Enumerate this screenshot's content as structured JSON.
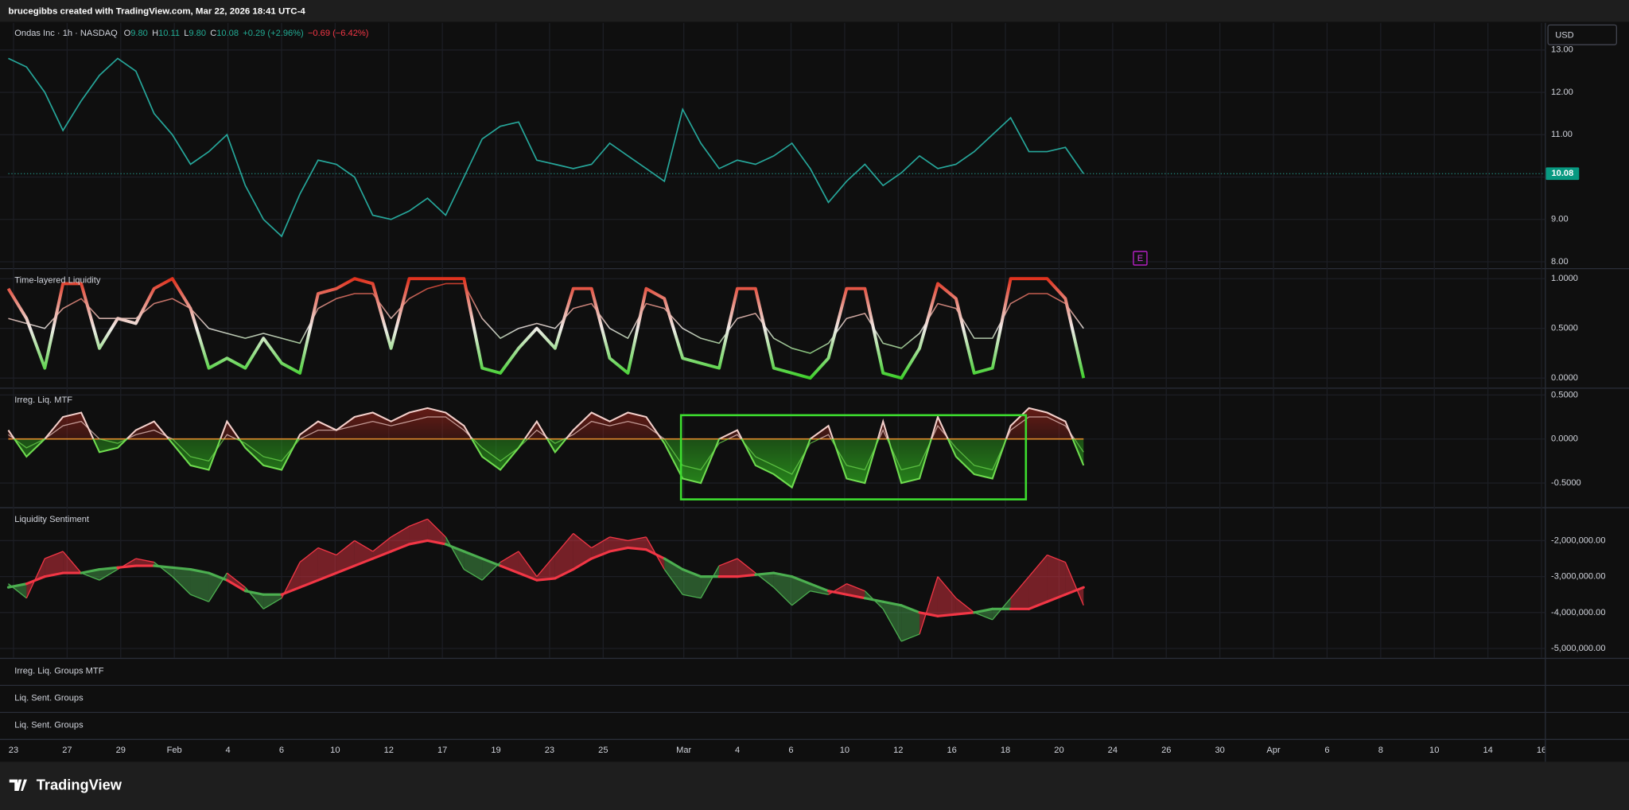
{
  "header": {
    "credit": "brucegibbs created with TradingView.com, Mar 22, 2026 18:41 UTC-4"
  },
  "legend": {
    "symbol": "Ondas Inc · 1h · NASDAQ",
    "ohlc": [
      {
        "key": "O",
        "value": "9.80"
      },
      {
        "key": "H",
        "value": "10.11"
      },
      {
        "key": "L",
        "value": "9.80"
      },
      {
        "key": "C",
        "value": "10.08"
      }
    ],
    "change": "+0.29 (+2.96%)",
    "change2": "−0.69 (−6.42%)"
  },
  "currency": "USD",
  "marker": "E",
  "chart_data": [
    {
      "type": "line",
      "color": "#26a69a",
      "grid": true,
      "values": [
        12.8,
        12.6,
        12.0,
        11.1,
        11.8,
        12.4,
        12.8,
        12.5,
        11.5,
        11.0,
        10.3,
        10.6,
        11.0,
        9.8,
        9.0,
        8.6,
        9.6,
        10.4,
        10.3,
        10.0,
        9.1,
        9.0,
        9.2,
        9.5,
        9.1,
        10.0,
        10.9,
        11.2,
        11.3,
        10.4,
        10.3,
        10.2,
        10.3,
        10.8,
        10.5,
        10.2,
        9.9,
        11.6,
        10.8,
        10.2,
        10.4,
        10.3,
        10.5,
        10.8,
        10.2,
        9.4,
        9.9,
        10.3,
        9.8,
        10.1,
        10.5,
        10.2,
        10.3,
        10.6,
        11.0,
        11.4,
        10.6,
        10.6,
        10.7,
        10.08
      ],
      "ylim": [
        7.85,
        13.64
      ],
      "yticks": [
        {
          "value": 8,
          "label": "8.00"
        },
        {
          "value": 9,
          "label": "9.00"
        },
        {
          "value": 10,
          "label": "10.00"
        },
        {
          "value": 11,
          "label": "11.00"
        },
        {
          "value": 12,
          "label": "12.00"
        },
        {
          "value": 13,
          "label": "13.00"
        }
      ]
    },
    {
      "type": "line",
      "title": "Time-layered Liquidity",
      "grid": true,
      "colors": {
        "high": "#e0321e",
        "mid": "#f0ece8",
        "low": "#3ecf2b"
      },
      "series": [
        {
          "values": [
            0.9,
            0.6,
            0.1,
            0.95,
            0.95,
            0.3,
            0.6,
            0.55,
            0.9,
            1.0,
            0.7,
            0.1,
            0.2,
            0.1,
            0.4,
            0.15,
            0.05,
            0.85,
            0.9,
            1.0,
            0.95,
            0.3,
            1.0,
            1.0,
            1.0,
            1.0,
            0.1,
            0.05,
            0.3,
            0.5,
            0.3,
            0.9,
            0.9,
            0.2,
            0.05,
            0.9,
            0.8,
            0.2,
            0.15,
            0.1,
            0.9,
            0.9,
            0.1,
            0.05,
            0.0,
            0.2,
            0.9,
            0.9,
            0.05,
            0.0,
            0.3,
            0.95,
            0.8,
            0.05,
            0.1,
            1.0,
            1.0,
            1.0,
            0.8,
            0.0
          ]
        },
        {
          "values": [
            0.6,
            0.55,
            0.5,
            0.7,
            0.8,
            0.6,
            0.6,
            0.6,
            0.75,
            0.8,
            0.7,
            0.5,
            0.45,
            0.4,
            0.45,
            0.4,
            0.35,
            0.7,
            0.8,
            0.85,
            0.85,
            0.6,
            0.8,
            0.9,
            0.95,
            0.95,
            0.6,
            0.4,
            0.5,
            0.55,
            0.5,
            0.7,
            0.75,
            0.5,
            0.4,
            0.75,
            0.7,
            0.5,
            0.4,
            0.35,
            0.6,
            0.65,
            0.4,
            0.3,
            0.25,
            0.35,
            0.6,
            0.65,
            0.35,
            0.3,
            0.45,
            0.75,
            0.7,
            0.4,
            0.4,
            0.75,
            0.85,
            0.85,
            0.75,
            0.5
          ]
        }
      ],
      "ylim": [
        -0.096,
        1.106
      ],
      "yticks": [
        {
          "value": 0,
          "label": "0.0000"
        },
        {
          "value": 0.5,
          "label": "0.5000"
        },
        {
          "value": 1,
          "label": "1.0000"
        }
      ]
    },
    {
      "type": "area",
      "title": "Irreg. Liq. MTF",
      "grid": true,
      "colors": {
        "up": "#b2281c",
        "down": "#2fae1f",
        "line_up": "#f3cfca",
        "line_down": "#6fdc4f",
        "zero": "#e08a2c"
      },
      "series": [
        {
          "values": [
            0.1,
            -0.2,
            0.0,
            0.25,
            0.3,
            -0.15,
            -0.1,
            0.1,
            0.2,
            -0.05,
            -0.3,
            -0.35,
            0.2,
            -0.1,
            -0.3,
            -0.35,
            0.05,
            0.2,
            0.1,
            0.25,
            0.3,
            0.2,
            0.3,
            0.35,
            0.3,
            0.15,
            -0.2,
            -0.35,
            -0.1,
            0.2,
            -0.15,
            0.1,
            0.3,
            0.2,
            0.3,
            0.25,
            -0.05,
            -0.45,
            -0.5,
            0.0,
            0.1,
            -0.3,
            -0.4,
            -0.55,
            0.0,
            0.15,
            -0.45,
            -0.5,
            0.2,
            -0.5,
            -0.45,
            0.25,
            -0.2,
            -0.4,
            -0.45,
            0.15,
            0.35,
            0.3,
            0.2,
            -0.3
          ]
        },
        {
          "values": [
            0.05,
            -0.1,
            0.0,
            0.15,
            0.2,
            0.0,
            -0.05,
            0.05,
            0.1,
            0.0,
            -0.2,
            -0.25,
            0.05,
            -0.05,
            -0.2,
            -0.25,
            0.0,
            0.1,
            0.1,
            0.15,
            0.2,
            0.15,
            0.2,
            0.25,
            0.25,
            0.1,
            -0.1,
            -0.25,
            -0.1,
            0.1,
            -0.05,
            0.05,
            0.2,
            0.15,
            0.2,
            0.15,
            0.0,
            -0.3,
            -0.35,
            -0.05,
            0.05,
            -0.2,
            -0.3,
            -0.4,
            -0.05,
            0.05,
            -0.3,
            -0.35,
            0.1,
            -0.35,
            -0.3,
            0.15,
            -0.1,
            -0.3,
            -0.35,
            0.1,
            0.25,
            0.25,
            0.15,
            -0.15
          ]
        }
      ],
      "ylim": [
        -0.774,
        0.583
      ],
      "yticks": [
        {
          "value": -0.5,
          "label": "-0.5000"
        },
        {
          "value": 0,
          "label": "0.0000"
        },
        {
          "value": 0.5,
          "label": "0.5000"
        }
      ]
    },
    {
      "type": "band",
      "title": "Liquidity Sentiment",
      "grid": true,
      "colors": {
        "up": "#f23645",
        "down": "#4caf50"
      },
      "series": [
        {
          "values": [
            -3200000,
            -3600000,
            -2500000,
            -2300000,
            -2900000,
            -3100000,
            -2800000,
            -2500000,
            -2600000,
            -3000000,
            -3500000,
            -3700000,
            -2900000,
            -3300000,
            -3900000,
            -3600000,
            -2600000,
            -2200000,
            -2400000,
            -2000000,
            -2300000,
            -1900000,
            -1600000,
            -1400000,
            -1900000,
            -2800000,
            -3100000,
            -2600000,
            -2300000,
            -3000000,
            -2400000,
            -1800000,
            -2200000,
            -1900000,
            -2000000,
            -1900000,
            -2800000,
            -3500000,
            -3600000,
            -2700000,
            -2500000,
            -2900000,
            -3300000,
            -3800000,
            -3400000,
            -3500000,
            -3200000,
            -3400000,
            -3900000,
            -4800000,
            -4600000,
            -3000000,
            -3600000,
            -4000000,
            -4200000,
            -3600000,
            -3000000,
            -2400000,
            -2600000,
            -3800000
          ]
        },
        {
          "values": [
            -3300000,
            -3200000,
            -3000000,
            -2900000,
            -2900000,
            -2800000,
            -2750000,
            -2700000,
            -2700000,
            -2750000,
            -2800000,
            -2900000,
            -3100000,
            -3400000,
            -3500000,
            -3500000,
            -3300000,
            -3100000,
            -2900000,
            -2700000,
            -2500000,
            -2300000,
            -2100000,
            -2000000,
            -2100000,
            -2300000,
            -2500000,
            -2700000,
            -2900000,
            -3100000,
            -3050000,
            -2800000,
            -2500000,
            -2300000,
            -2200000,
            -2250000,
            -2500000,
            -2800000,
            -3000000,
            -3000000,
            -3000000,
            -2950000,
            -2900000,
            -3000000,
            -3200000,
            -3400000,
            -3500000,
            -3600000,
            -3700000,
            -3800000,
            -4000000,
            -4100000,
            -4050000,
            -4000000,
            -3900000,
            -3900000,
            -3900000,
            -3700000,
            -3500000,
            -3300000
          ]
        }
      ],
      "ylim": [
        -5260000,
        -1070000
      ],
      "yticks": [
        {
          "value": -5000000,
          "label": "-5,000,000.00"
        },
        {
          "value": -4000000,
          "label": "-4,000,000.00"
        },
        {
          "value": -3000000,
          "label": "-3,000,000.00"
        },
        {
          "value": -2000000,
          "label": "-2,000,000.00"
        }
      ]
    }
  ],
  "empty_panes": [
    "Irreg. Liq. Groups MTF",
    "Liq. Sent. Groups",
    "Liq. Sent. Groups"
  ],
  "x_axis": {
    "labels": [
      "23",
      "27",
      "29",
      "Feb",
      "4",
      "6",
      "10",
      "12",
      "17",
      "19",
      "23",
      "25",
      "Mar",
      "4",
      "6",
      "10",
      "12",
      "16",
      "18",
      "20",
      "24",
      "26",
      "30",
      "Apr",
      "6",
      "8",
      "10",
      "14",
      "16"
    ]
  },
  "brand": "TradingView"
}
